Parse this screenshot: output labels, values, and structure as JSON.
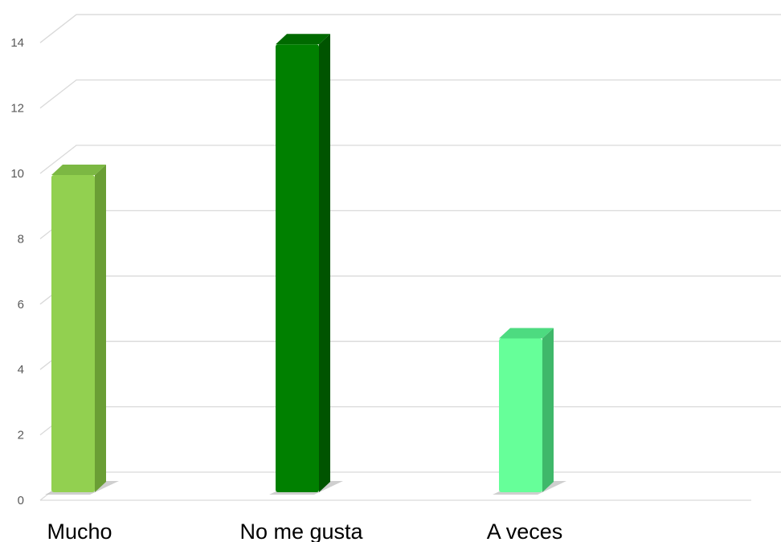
{
  "chart_data": {
    "type": "bar",
    "title": "",
    "xlabel": "",
    "ylabel": "",
    "categories": [
      "Mucho",
      "No me gusta",
      "A veces"
    ],
    "values": [
      10,
      14,
      5
    ],
    "ylim": [
      0,
      14
    ],
    "yticks": [
      "0",
      "2",
      "4",
      "6",
      "8",
      "10",
      "12",
      "14"
    ],
    "grid": true,
    "style": "3d-bar",
    "colors": [
      "#92d050",
      "#008000",
      "#66ff99"
    ],
    "side_colors": [
      "#6a9e35",
      "#005400",
      "#3fb86a"
    ],
    "top_colors": [
      "#7cb843",
      "#006a00",
      "#4ddb80"
    ]
  }
}
